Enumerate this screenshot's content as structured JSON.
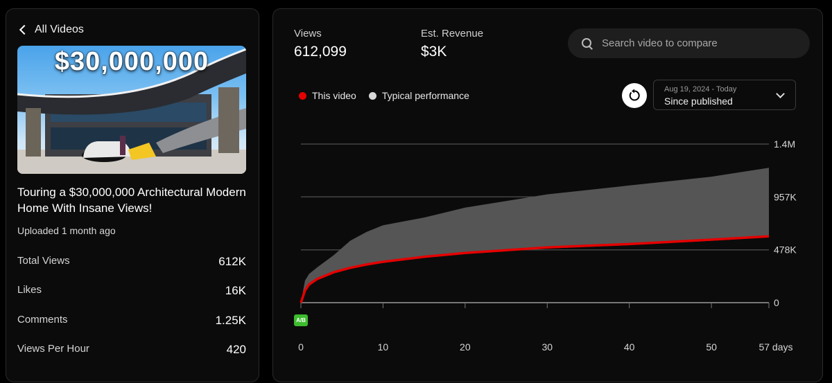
{
  "sidebar": {
    "back_label": "All Videos",
    "thumbnail_overlay": "$30,000,000",
    "video_title": "Touring a $30,000,000 Architectural Modern Home With Insane Views!",
    "uploaded": "Uploaded 1 month ago",
    "stats": [
      {
        "label": "Total Views",
        "value": "612K"
      },
      {
        "label": "Likes",
        "value": "16K"
      },
      {
        "label": "Comments",
        "value": "1.25K"
      },
      {
        "label": "Views Per Hour",
        "value": "420"
      }
    ]
  },
  "metrics": {
    "views_label": "Views",
    "views_value": "612,099",
    "revenue_label": "Est. Revenue",
    "revenue_value": "$3K"
  },
  "search": {
    "placeholder": "Search video to compare"
  },
  "legend": {
    "this_video": "This video",
    "typical": "Typical performance"
  },
  "date_range": {
    "range": "Aug 19, 2024 - Today",
    "selection": "Since published"
  },
  "ab_badge": "A/B",
  "colors": {
    "this_video": "#e50000",
    "typical_band": "#555555",
    "accent_ab": "#3dbb2e"
  },
  "icons": [
    "chevron-left-icon",
    "search-icon",
    "reset-icon",
    "chevron-down-icon"
  ],
  "chart_data": {
    "type": "area",
    "x_max": 57,
    "ylim": [
      0,
      1435000
    ],
    "y_ticks": [
      {
        "value": 0,
        "label": "0"
      },
      {
        "value": 478000,
        "label": "478K"
      },
      {
        "value": 957000,
        "label": "957K"
      },
      {
        "value": 1435000,
        "label": "1.4M"
      }
    ],
    "x_ticks": [
      {
        "value": 0,
        "label": "0"
      },
      {
        "value": 10,
        "label": "10"
      },
      {
        "value": 20,
        "label": "20"
      },
      {
        "value": 30,
        "label": "30"
      },
      {
        "value": 40,
        "label": "40"
      },
      {
        "value": 50,
        "label": "50"
      },
      {
        "value": 57,
        "label": "57 days"
      }
    ],
    "series": [
      {
        "name": "This video",
        "x": [
          0,
          0.5,
          1,
          2,
          4,
          6,
          8,
          10,
          15,
          20,
          25,
          30,
          35,
          40,
          45,
          50,
          57
        ],
        "values": [
          0,
          110000,
          165000,
          215000,
          275000,
          315000,
          345000,
          370000,
          415000,
          450000,
          475000,
          500000,
          515000,
          530000,
          550000,
          570000,
          600000
        ]
      },
      {
        "name": "Typical performance",
        "x": [
          0,
          0.5,
          1,
          2,
          4,
          6,
          8,
          10,
          15,
          20,
          25,
          30,
          35,
          40,
          45,
          50,
          57
        ],
        "lower": [
          0,
          90000,
          150000,
          205000,
          265000,
          305000,
          335000,
          360000,
          405000,
          440000,
          465000,
          490000,
          505000,
          520000,
          540000,
          560000,
          590000
        ],
        "upper": [
          0,
          200000,
          260000,
          320000,
          430000,
          560000,
          640000,
          700000,
          770000,
          860000,
          920000,
          980000,
          1020000,
          1060000,
          1100000,
          1140000,
          1220000
        ]
      }
    ]
  }
}
